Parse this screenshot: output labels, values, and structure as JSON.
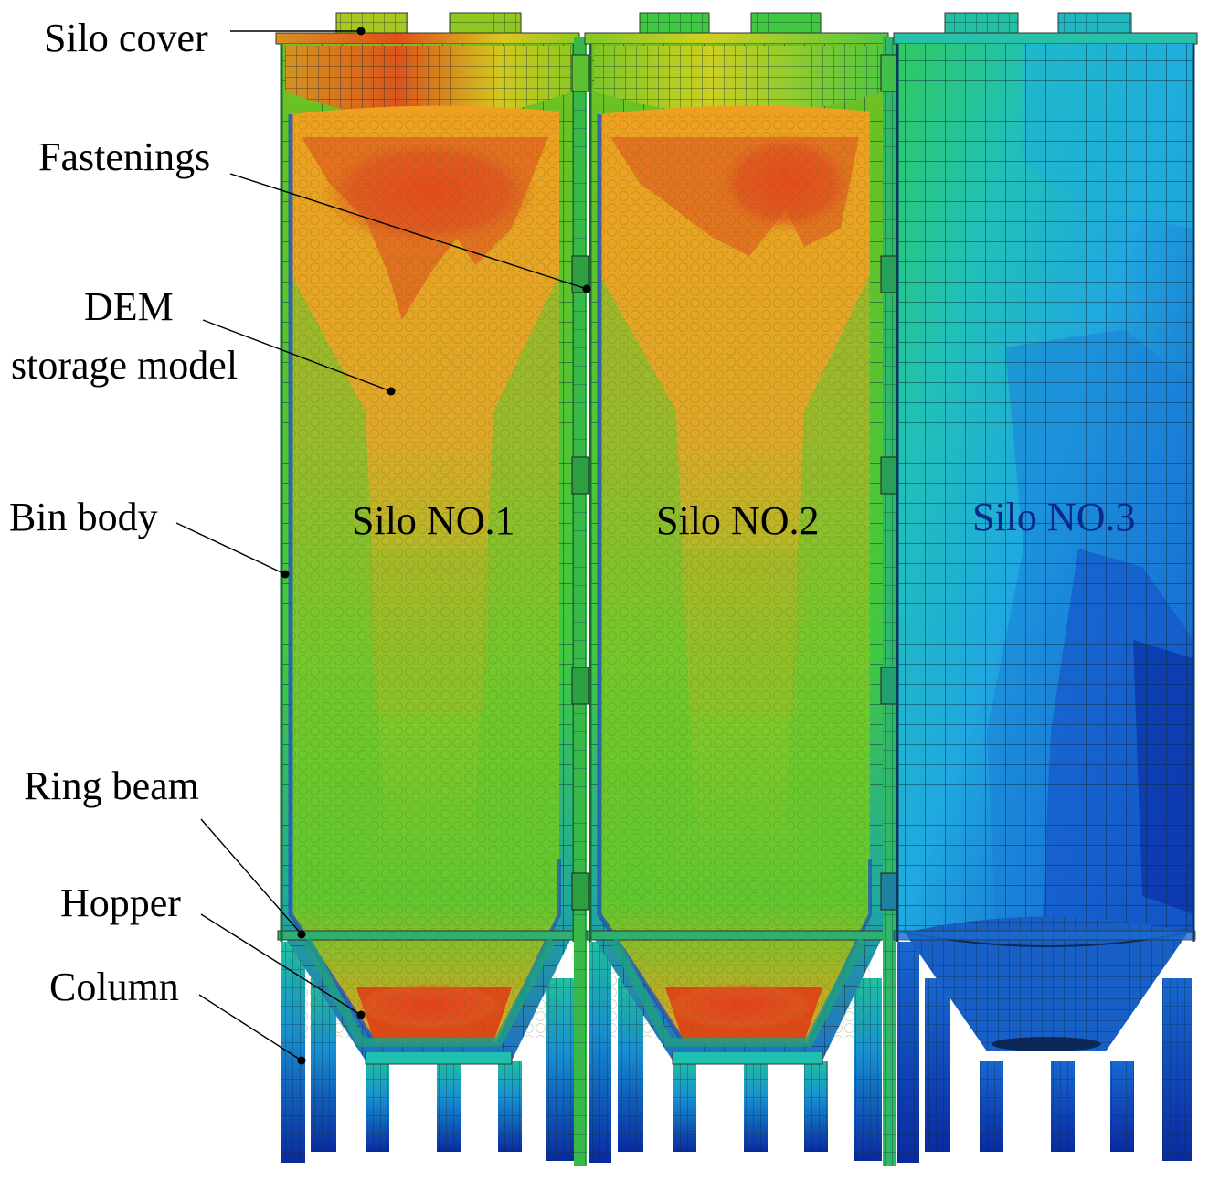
{
  "labels": {
    "silo_cover": "Silo cover",
    "fastenings": "Fastenings",
    "dem_line1": "DEM",
    "dem_line2": "storage model",
    "bin_body": "Bin body",
    "ring_beam": "Ring beam",
    "hopper": "Hopper",
    "column": "Column"
  },
  "silos": [
    {
      "name": "Silo NO.1"
    },
    {
      "name": "Silo NO.2"
    },
    {
      "name": "Silo NO.3"
    }
  ],
  "colors": {
    "red": "#e0401a",
    "orange": "#f0a020",
    "yellow_green": "#a8d020",
    "green": "#40c830",
    "cyan": "#20c8c0",
    "light_blue": "#20a8e0",
    "blue": "#1060d0",
    "dark_blue": "#0a2aa0"
  }
}
